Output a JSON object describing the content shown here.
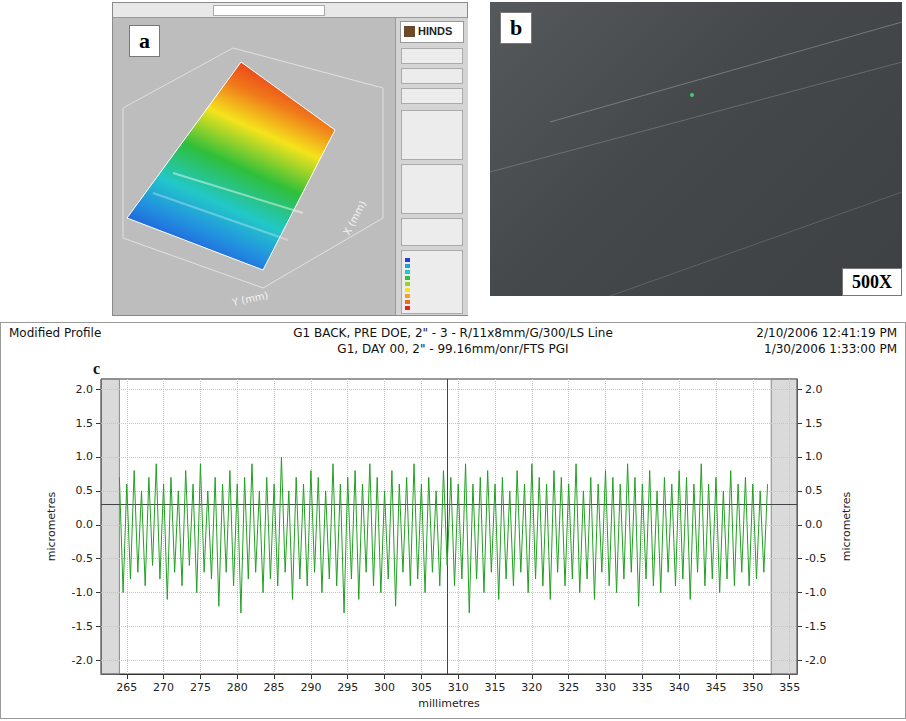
{
  "panels": {
    "a": {
      "label": "a",
      "logo": "HINDS",
      "axis_labels": [
        "Y (mm)",
        "X (mm)"
      ]
    },
    "b": {
      "label": "b",
      "magnification": "500X"
    }
  },
  "chart_data": {
    "type": "line",
    "label": "c",
    "title": "Modified Profile",
    "subtitle": [
      "G1 BACK, PRE DOE, 2\" - 3 - R/11x8mm/G/300/LS Line",
      "G1, DAY 00, 2\" - 99.16mm/onr/FTS PGI"
    ],
    "timestamps": [
      "2/10/2006 12:41:19 PM",
      "1/30/2006 1:33:00 PM"
    ],
    "x_label": "millimetres",
    "y_label": "micrometres",
    "y2_label": "micrometres",
    "color": "#22a022",
    "x": [
      264,
      264.5,
      265,
      265.5,
      266,
      266.5,
      267,
      267.5,
      268,
      268.5,
      269,
      269.5,
      270,
      270.5,
      271,
      271.5,
      272,
      272.5,
      273,
      273.5,
      274,
      274.5,
      275,
      275.5,
      276,
      276.5,
      277,
      277.5,
      278,
      278.5,
      279,
      279.5,
      280,
      280.5,
      281,
      281.5,
      282,
      282.5,
      283,
      283.5,
      284,
      284.5,
      285,
      285.5,
      286,
      286.5,
      287,
      287.5,
      288,
      288.5,
      289,
      289.5,
      290,
      290.5,
      291,
      291.5,
      292,
      292.5,
      293,
      293.5,
      294,
      294.5,
      295,
      295.5,
      296,
      296.5,
      297,
      297.5,
      298,
      298.5,
      299,
      299.5,
      300,
      300.5,
      301,
      301.5,
      302,
      302.5,
      303,
      303.5,
      304,
      304.5,
      305,
      305.5,
      306,
      306.5,
      307,
      307.5,
      308,
      308.5,
      309,
      309.5,
      310,
      310.5,
      311,
      311.5,
      312,
      312.5,
      313,
      313.5,
      314,
      314.5,
      315,
      315.5,
      316,
      316.5,
      317,
      317.5,
      318,
      318.5,
      319,
      319.5,
      320,
      320.5,
      321,
      321.5,
      322,
      322.5,
      323,
      323.5,
      324,
      324.5,
      325,
      325.5,
      326,
      326.5,
      327,
      327.5,
      328,
      328.5,
      329,
      329.5,
      330,
      330.5,
      331,
      331.5,
      332,
      332.5,
      333,
      333.5,
      334,
      334.5,
      335,
      335.5,
      336,
      336.5,
      337,
      337.5,
      338,
      338.5,
      339,
      339.5,
      340,
      340.5,
      341,
      341.5,
      342,
      342.5,
      343,
      343.5,
      344,
      344.5,
      345,
      345.5,
      346,
      346.5,
      347,
      347.5,
      348,
      348.5,
      349,
      349.5,
      350,
      350.5,
      351,
      351.5,
      352
    ],
    "values": [
      0.7,
      -1.0,
      0.6,
      -0.8,
      0.8,
      -0.7,
      0.5,
      -0.9,
      0.7,
      -0.6,
      0.9,
      -0.8,
      0.6,
      -1.1,
      0.7,
      -0.7,
      0.5,
      -0.9,
      0.8,
      -0.6,
      0.6,
      -1.0,
      0.9,
      -0.7,
      0.5,
      -0.8,
      0.7,
      -1.2,
      0.6,
      -0.7,
      0.8,
      -0.9,
      0.6,
      -1.3,
      0.7,
      -0.8,
      0.9,
      -0.7,
      0.5,
      -1.0,
      0.7,
      -0.8,
      0.6,
      -0.9,
      1.0,
      -0.7,
      0.5,
      -1.1,
      0.7,
      -0.8,
      0.6,
      -0.9,
      0.8,
      -0.7,
      0.7,
      -1.0,
      0.5,
      -0.8,
      0.9,
      -0.9,
      0.6,
      -1.3,
      0.7,
      -0.8,
      0.8,
      -1.1,
      0.6,
      -0.7,
      0.9,
      -0.9,
      0.7,
      -1.0,
      0.5,
      -0.8,
      0.8,
      -1.2,
      0.6,
      -0.7,
      0.7,
      -0.9,
      0.9,
      -0.8,
      0.6,
      -1.0,
      0.7,
      -0.7,
      0.5,
      -0.9,
      0.8,
      -0.6,
      0.7,
      -0.9,
      0.6,
      -0.8,
      0.9,
      -1.3,
      0.6,
      -0.8,
      0.7,
      -1.0,
      0.8,
      -0.7,
      0.6,
      -1.1,
      0.7,
      -0.8,
      0.5,
      -0.9,
      0.8,
      -0.7,
      0.6,
      -1.0,
      0.9,
      -0.8,
      0.7,
      -0.9,
      0.6,
      -1.1,
      0.8,
      -0.7,
      0.7,
      -0.9,
      0.6,
      -0.8,
      0.9,
      -1.0,
      0.5,
      -0.8,
      0.7,
      -1.1,
      0.6,
      -0.7,
      0.8,
      -0.9,
      0.7,
      -1.0,
      0.6,
      -0.8,
      0.9,
      -0.7,
      0.7,
      -1.2,
      0.6,
      -0.8,
      0.8,
      -0.9,
      0.5,
      -1.0,
      0.7,
      -0.7,
      0.6,
      -0.9,
      0.8,
      -0.8,
      0.7,
      -1.1,
      0.6,
      -0.7,
      0.9,
      -0.9,
      0.6,
      -0.8,
      0.7,
      -1.0,
      0.5,
      -0.8,
      0.8,
      -0.9,
      0.6,
      -0.7,
      0.7,
      -0.9,
      0.6,
      -0.8,
      0.5,
      -0.7,
      0.6
    ],
    "xlim": [
      261.5,
      356
    ],
    "xticks": [
      265,
      270,
      275,
      280,
      285,
      290,
      295,
      300,
      305,
      310,
      315,
      320,
      325,
      330,
      335,
      340,
      345,
      350,
      355
    ],
    "ylim": [
      -2.2,
      2.15
    ],
    "yticks": [
      {
        "value": -2,
        "label": "-2.0"
      },
      {
        "value": -1.5,
        "label": "-1.5"
      },
      {
        "value": -1,
        "label": "-1.0"
      },
      {
        "value": -0.5,
        "label": "-0.5"
      },
      {
        "value": 0,
        "label": "0.0"
      },
      {
        "value": 0.5,
        "label": "0.5"
      },
      {
        "value": 1,
        "label": "1.0"
      },
      {
        "value": 1.5,
        "label": "1.5"
      },
      {
        "value": 2,
        "label": "2.0"
      }
    ],
    "y2lim": [
      -2.2,
      2.15
    ],
    "y2ticks": [
      {
        "value": -2,
        "label": "-2.0"
      },
      {
        "value": -1.5,
        "label": "-1.5"
      },
      {
        "value": -1,
        "label": "-1.0"
      },
      {
        "value": -0.5,
        "label": "-0.5"
      },
      {
        "value": 0,
        "label": "0.0"
      },
      {
        "value": 0.5,
        "label": "0.5"
      },
      {
        "value": 1,
        "label": "1.0"
      },
      {
        "value": 1.5,
        "label": "1.5"
      },
      {
        "value": 2,
        "label": "2.0"
      }
    ],
    "excluded_ranges": [
      [
        261.5,
        264
      ],
      [
        352.5,
        356
      ]
    ],
    "cursor": {
      "x": 308.5,
      "y": 0.3
    },
    "grid": true
  }
}
